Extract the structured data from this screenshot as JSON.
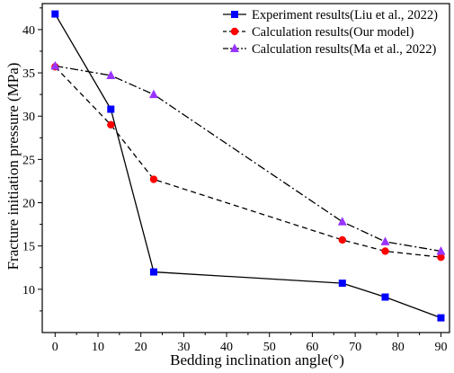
{
  "chart_data": {
    "type": "line",
    "xlabel": "Bedding inclination angle(°)",
    "ylabel": "Fracture initiation pressure (MPa)",
    "xlim": [
      -3,
      92
    ],
    "ylim": [
      5,
      43
    ],
    "xticks": [
      0,
      10,
      20,
      30,
      40,
      50,
      60,
      70,
      80,
      90
    ],
    "yticks": [
      10,
      15,
      20,
      25,
      30,
      35,
      40
    ],
    "grid": false,
    "legend_position": "top-right",
    "series": [
      {
        "name": "Experiment results(Liu et al., 2022)",
        "color": "#0000ff",
        "marker": "square",
        "line_style": "solid",
        "x": [
          0,
          13,
          23,
          67,
          77,
          90
        ],
        "y": [
          41.8,
          30.8,
          12.0,
          10.7,
          9.1,
          6.7
        ]
      },
      {
        "name": "Calculation results(Our model)",
        "color": "#ff0000",
        "marker": "circle",
        "line_style": "dashed",
        "x": [
          0,
          13,
          23,
          67,
          77,
          90
        ],
        "y": [
          35.7,
          29.0,
          22.7,
          15.7,
          14.4,
          13.7
        ]
      },
      {
        "name": "Calculation results(Ma et al., 2022)",
        "color": "#9933ff",
        "marker": "triangle",
        "line_style": "dashdot",
        "x": [
          0,
          13,
          23,
          67,
          77,
          90
        ],
        "y": [
          35.8,
          34.7,
          32.5,
          17.8,
          15.5,
          14.4
        ]
      }
    ]
  }
}
